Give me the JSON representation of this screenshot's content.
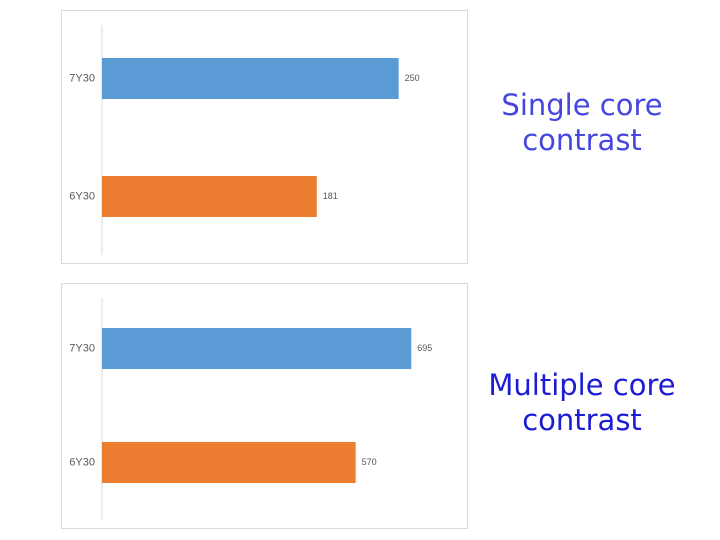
{
  "chart_data": [
    {
      "type": "bar",
      "orientation": "horizontal",
      "title": "Single core contrast",
      "categories": [
        "7Y30",
        "6Y30"
      ],
      "values": [
        250,
        181
      ],
      "colors": [
        "#5b9bd5",
        "#ed7d31"
      ],
      "title_color": "#4646e0",
      "xlim": [
        0,
        300
      ]
    },
    {
      "type": "bar",
      "orientation": "horizontal",
      "title": "Multiple core contrast",
      "categories": [
        "7Y30",
        "6Y30"
      ],
      "values": [
        695,
        570
      ],
      "colors": [
        "#5b9bd5",
        "#ed7d31"
      ],
      "title_color": "#1c1cd6",
      "xlim": [
        0,
        800
      ]
    }
  ]
}
